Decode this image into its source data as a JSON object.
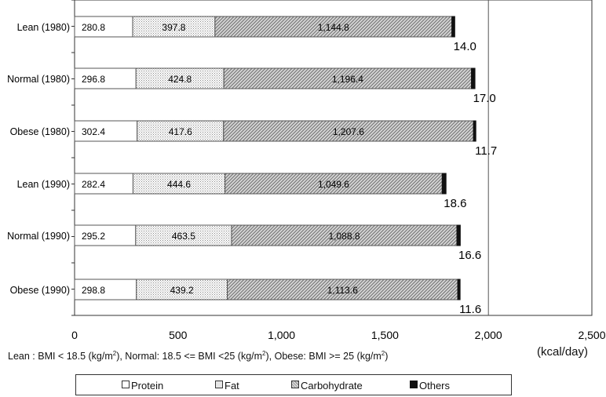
{
  "chart_data": {
    "type": "bar",
    "orientation": "horizontal",
    "stacked": true,
    "categories": [
      "Lean (1980)",
      "Normal (1980)",
      "Obese (1980)",
      "Lean (1990)",
      "Normal (1990)",
      "Obese (1990)"
    ],
    "series": [
      {
        "name": "Protein",
        "values": [
          280.8,
          296.8,
          302.4,
          282.4,
          295.2,
          298.8
        ],
        "labels": [
          "280.8",
          "296.8",
          "302.4",
          "282.4",
          "295.2",
          "298.8"
        ],
        "color": "#ffffff"
      },
      {
        "name": "Fat",
        "values": [
          397.8,
          424.8,
          417.6,
          444.6,
          463.5,
          439.2
        ],
        "labels": [
          "397.8",
          "424.8",
          "417.6",
          "444.6",
          "463.5",
          "439.2"
        ],
        "color": "#f0f0f0"
      },
      {
        "name": "Carbohydrate",
        "values": [
          1144.8,
          1196.4,
          1207.6,
          1049.6,
          1088.8,
          1113.6
        ],
        "labels": [
          "1,144.8",
          "1,196.4",
          "1,207.6",
          "1,049.6",
          "1,088.8",
          "1,113.6"
        ],
        "color": "#b0b0b0"
      },
      {
        "name": "Others",
        "values": [
          14.0,
          17.0,
          11.7,
          18.6,
          16.6,
          11.6
        ],
        "labels": [
          "14.0",
          "17.0",
          "11.7",
          "18.6",
          "16.6",
          "11.6"
        ],
        "color": "#111111"
      }
    ],
    "xlim": [
      0,
      2500
    ],
    "xticks": [
      0,
      500,
      1000,
      1500,
      2000,
      2500
    ],
    "xtick_labels": [
      "0",
      "500",
      "1,000",
      "1,500",
      "2,000",
      "2,500"
    ],
    "unit": "(kcal/day)",
    "footnote": [
      "Lean : BMI < 18.5 (kg/m",
      "2",
      "), Normal: 18.5 <= BMI <25 (kg/m",
      "2",
      "), Obese: BMI >= 25 (kg/m",
      "2",
      ")"
    ],
    "legend_position": "bottom",
    "grid": "vertical at 2000",
    "title": "",
    "xlabel": "",
    "ylabel": ""
  }
}
